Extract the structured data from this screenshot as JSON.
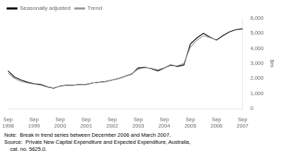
{
  "chart_data": {
    "type": "line",
    "ylabel": "$m",
    "categories": [
      "Sep\n1998",
      null,
      null,
      null,
      "Sep\n1999",
      null,
      null,
      null,
      "Sep\n2000",
      null,
      null,
      null,
      "Sep\n2001",
      null,
      null,
      null,
      "Sep\n2002",
      null,
      null,
      null,
      "Sep\n2003",
      null,
      null,
      null,
      "Sep\n2004",
      null,
      null,
      null,
      "Sep\n2005",
      null,
      null,
      null,
      "Sep\n2006",
      null,
      null,
      null,
      "Sep\n2007"
    ],
    "series": [
      {
        "name": "Seasonally adjusted",
        "color": "#000000",
        "values": [
          2500,
          2100,
          1900,
          1750,
          1650,
          1600,
          1450,
          1350,
          1500,
          1550,
          1550,
          1600,
          1600,
          1700,
          1750,
          1800,
          1900,
          2000,
          2150,
          2300,
          2700,
          2750,
          2650,
          2500,
          2700,
          2900,
          2800,
          2900,
          4300,
          4700,
          5000,
          4750,
          4550,
          4850,
          5100,
          5250,
          5300
        ]
      },
      {
        "name": "Trend",
        "color": "#999999",
        "values": [
          2350,
          2000,
          1800,
          1700,
          1620,
          1560,
          1430,
          1380,
          1480,
          1540,
          1560,
          1600,
          1620,
          1700,
          1760,
          1810,
          1900,
          2010,
          2150,
          2320,
          2620,
          2720,
          2680,
          2580,
          2710,
          2860,
          2840,
          3000,
          4100,
          4550,
          4850,
          4720,
          4580,
          null,
          null,
          null,
          5260
        ]
      }
    ],
    "ylim": [
      0,
      6000
    ],
    "yticks": [
      0,
      {
        "value": 1000,
        "label": "1,000"
      },
      {
        "value": 2000,
        "label": "2,000"
      },
      {
        "value": 3000,
        "label": "3,000"
      },
      {
        "value": 4000,
        "label": "4,000"
      },
      {
        "value": 5000,
        "label": "5,000"
      },
      {
        "value": 6000,
        "label": "6,000"
      }
    ],
    "grid": false,
    "legend": "upper left",
    "annotations": [
      "Note:  Break in trend series between December 2006 and March 2007.",
      "Source:  Private New Capital Expenditure and Expected Expenditure, Australia,",
      "    cat. no. 5625.0."
    ]
  }
}
